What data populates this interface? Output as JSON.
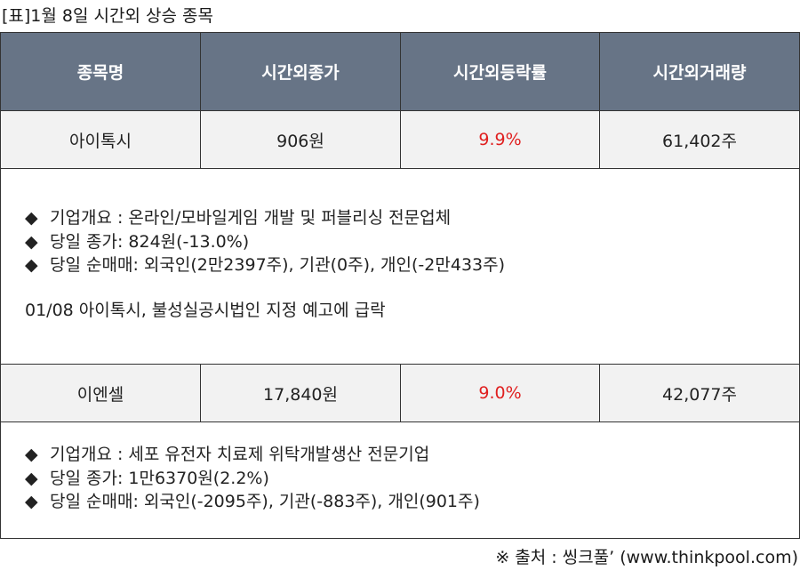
{
  "title": "[표]1월 8일 시간외 상승 종목",
  "table": {
    "headers": [
      "종목명",
      "시간외종가",
      "시간외등락률",
      "시간외거래량"
    ],
    "rows": [
      {
        "name": "아이톡시",
        "close": "906원",
        "rate": "9.9%",
        "volume": "61,402주",
        "details": [
          "기업개요 : 온라인/모바일게임 개발 및 퍼블리싱 전문업체",
          "당일 종가: 824원(-13.0%)",
          "당일 순매매: 외국인(2만2397주), 기관(0주), 개인(-2만433주)"
        ],
        "note": "01/08 아이톡시, 불성실공시법인 지정 예고에 급락"
      },
      {
        "name": "이엔셀",
        "close": "17,840원",
        "rate": "9.0%",
        "volume": "42,077주",
        "details": [
          "기업개요 : 세포 유전자 치료제 위탁개발생산 전문기업",
          "당일 종가: 1만6370원(2.2%)",
          "당일 순매매: 외국인(-2095주), 기관(-883주), 개인(901주)"
        ]
      }
    ]
  },
  "bullet_symbol": "◆",
  "source": "※ 출처 : 씽크풀’ (www.thinkpool.com)",
  "colors": {
    "header_bg": "#677486",
    "row_bg": "#f2f2f2",
    "rate_text": "#e02020"
  }
}
